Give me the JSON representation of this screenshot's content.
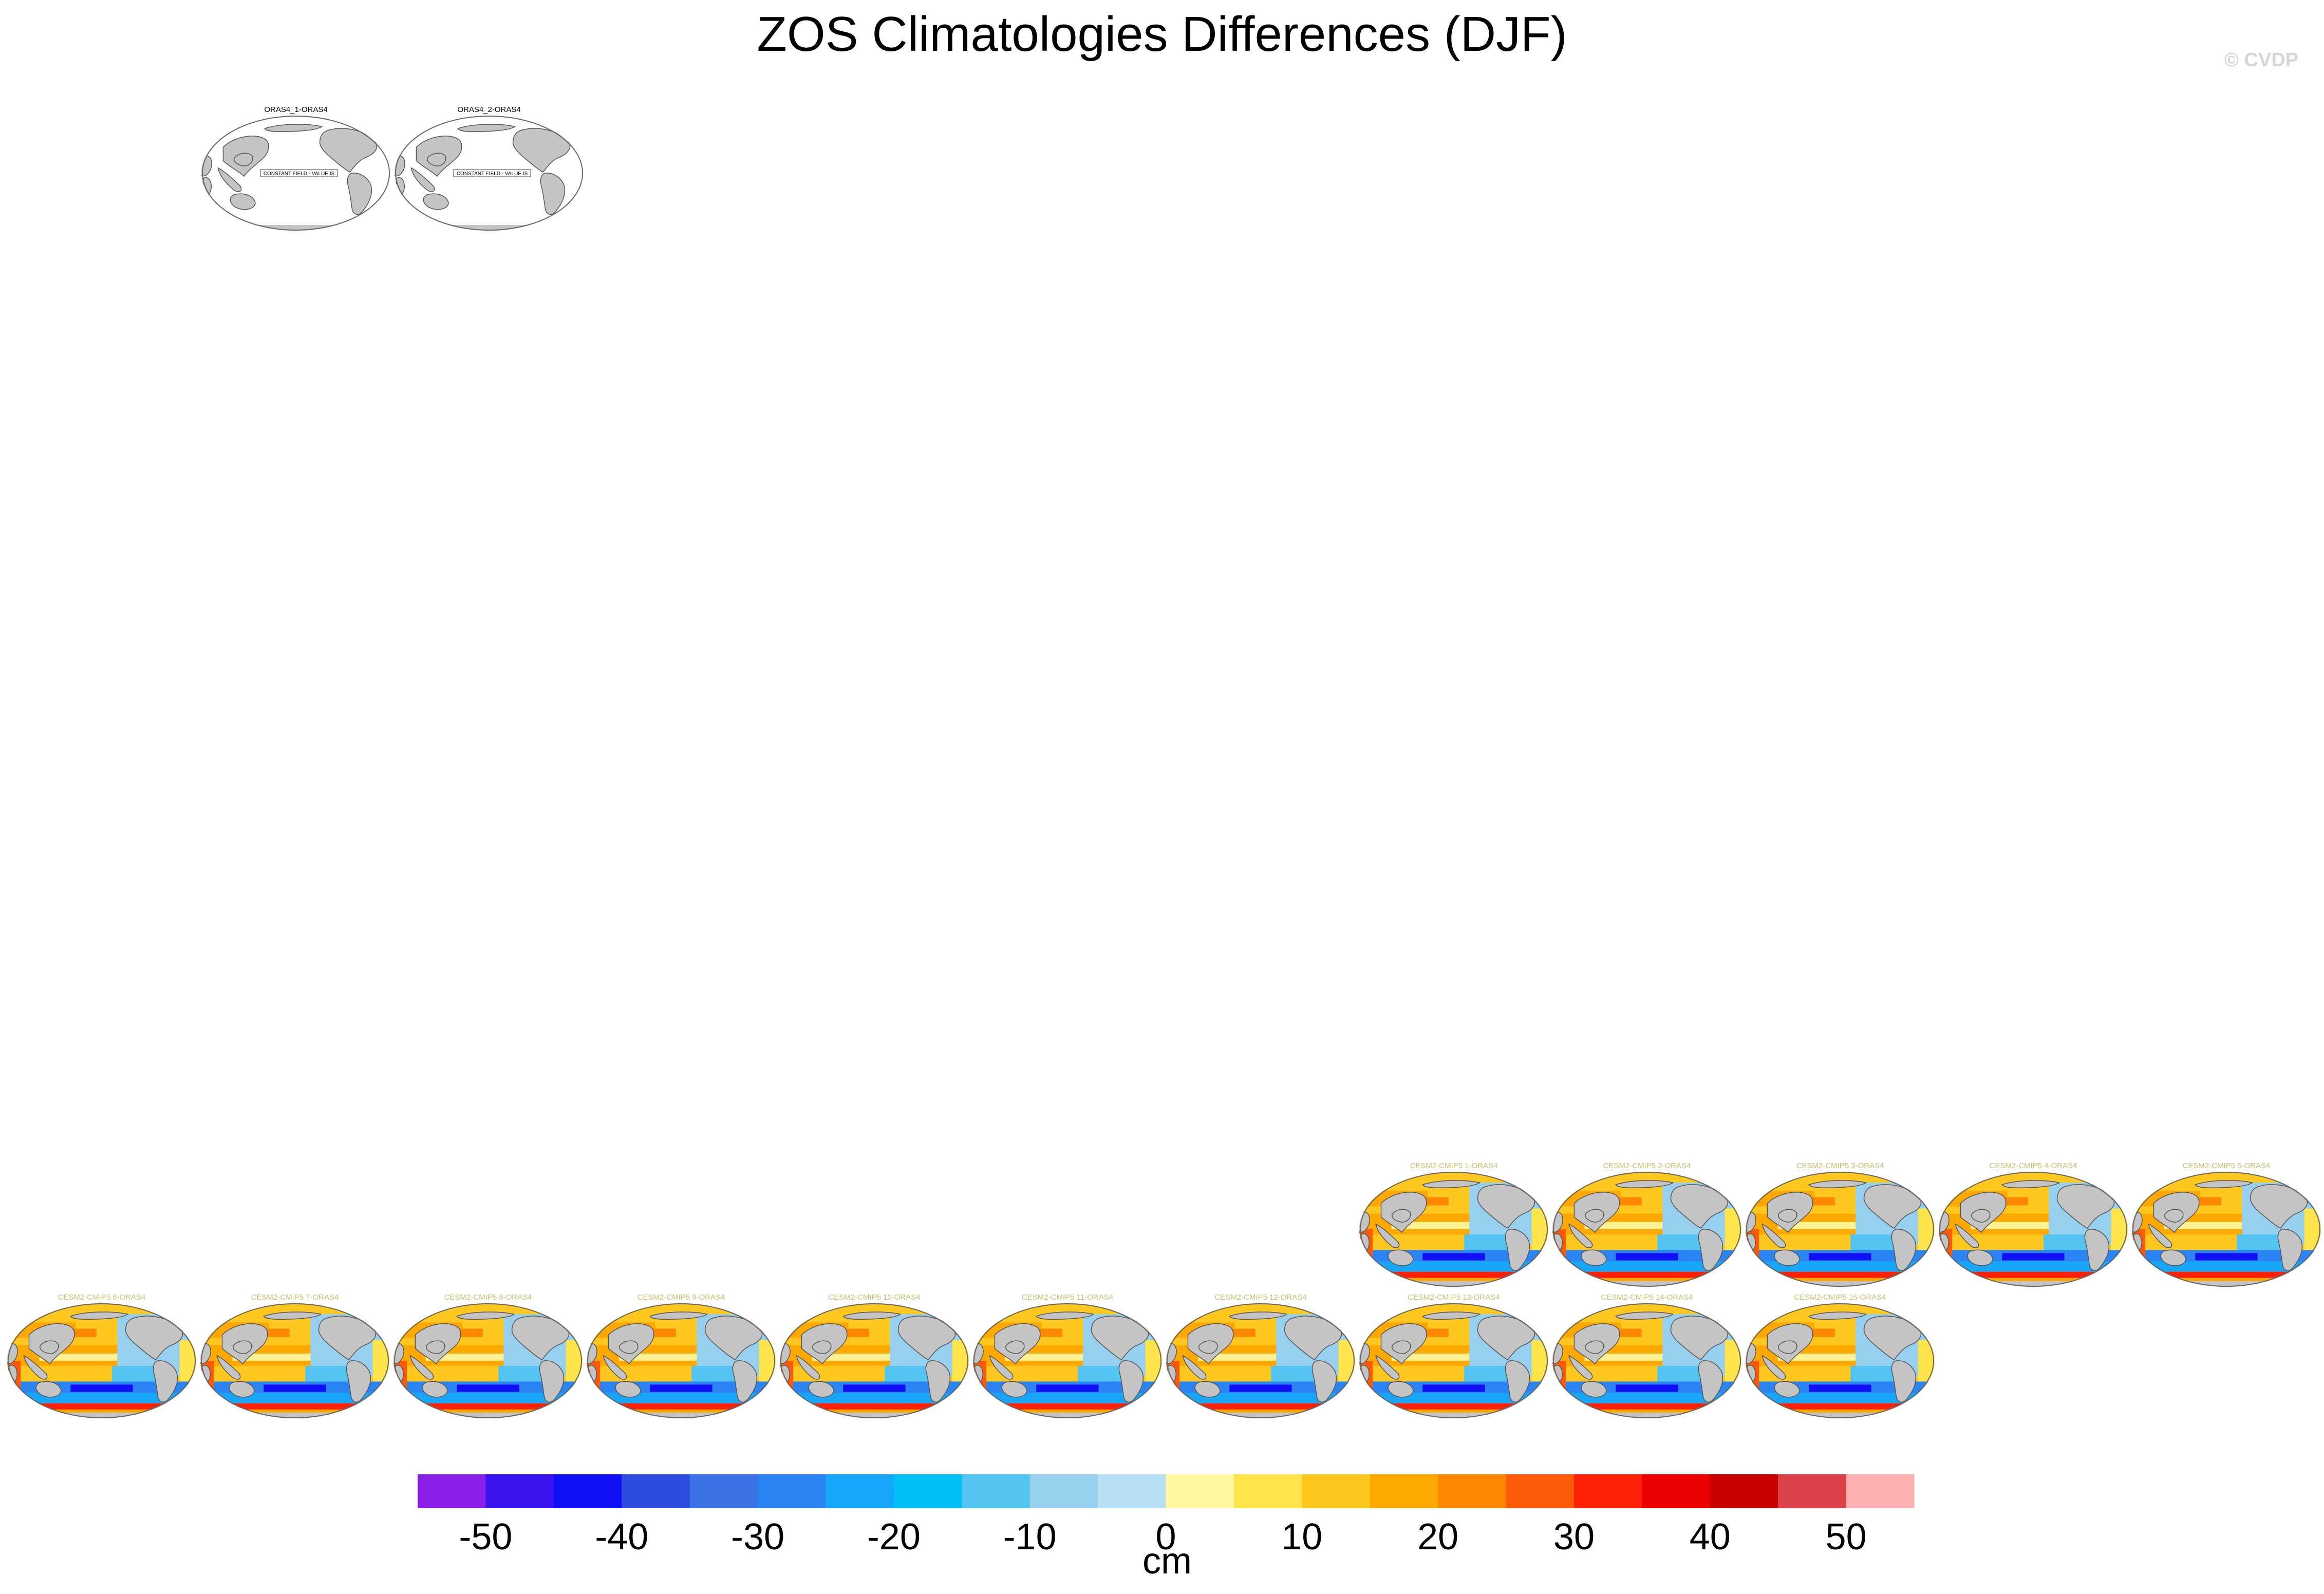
{
  "title": "ZOS Climatologies Differences (DJF)",
  "credit": "© CVDP",
  "colorbar": {
    "unit": "cm",
    "tick_labels": [
      "-50",
      "-40",
      "-30",
      "-20",
      "-10",
      "0",
      "10",
      "20",
      "30",
      "40",
      "50"
    ],
    "colors": [
      "#8a20e8",
      "#3a14f0",
      "#1010f6",
      "#2c4ce0",
      "#3a72e4",
      "#2a84f4",
      "#18a6fa",
      "#00c0f8",
      "#54c4f2",
      "#96d0ee",
      "#b8e0f4",
      "#fff8a0",
      "#ffe44c",
      "#ffc820",
      "#ffa800",
      "#ff8800",
      "#ff5a08",
      "#ff2008",
      "#ee0000",
      "#c80000",
      "#dc4048",
      "#ffb0b0"
    ]
  },
  "panels_obs": [
    {
      "label": "ORAS4_1-ORAS4",
      "note": "CONSTANT FIELD - VALUE IS"
    },
    {
      "label": "ORAS4_2-ORAS4",
      "note": "CONSTANT FIELD - VALUE IS"
    }
  ],
  "panels_model_row1": [
    {
      "label": "CESM2-CMIP5 1-ORAS4"
    },
    {
      "label": "CESM2-CMIP5 2-ORAS4"
    },
    {
      "label": "CESM2-CMIP5 3-ORAS4"
    },
    {
      "label": "CESM2-CMIP5 4-ORAS4"
    },
    {
      "label": "CESM2-CMIP5 5-ORAS4"
    }
  ],
  "panels_model_row2": [
    {
      "label": "CESM2-CMIP5 6-ORAS4"
    },
    {
      "label": "CESM2-CMIP5 7-ORAS4"
    },
    {
      "label": "CESM2-CMIP5 8-ORAS4"
    },
    {
      "label": "CESM2-CMIP5 9-ORAS4"
    },
    {
      "label": "CESM2-CMIP5 10-ORAS4"
    },
    {
      "label": "CESM2-CMIP5 11-ORAS4"
    },
    {
      "label": "CESM2-CMIP5 12-ORAS4"
    },
    {
      "label": "CESM2-CMIP5 13-ORAS4"
    },
    {
      "label": "CESM2-CMIP5 14-ORAS4"
    },
    {
      "label": "CESM2-CMIP5 15-ORAS4"
    }
  ],
  "chart_data": {
    "type": "heatmap",
    "title": "ZOS Climatologies Differences (DJF)",
    "colorbar_unit": "cm",
    "colorbar_levels": [
      -50,
      -45,
      -40,
      -35,
      -30,
      -25,
      -20,
      -15,
      -10,
      -5,
      0,
      5,
      10,
      15,
      20,
      25,
      30,
      35,
      40,
      45,
      50
    ]
  }
}
